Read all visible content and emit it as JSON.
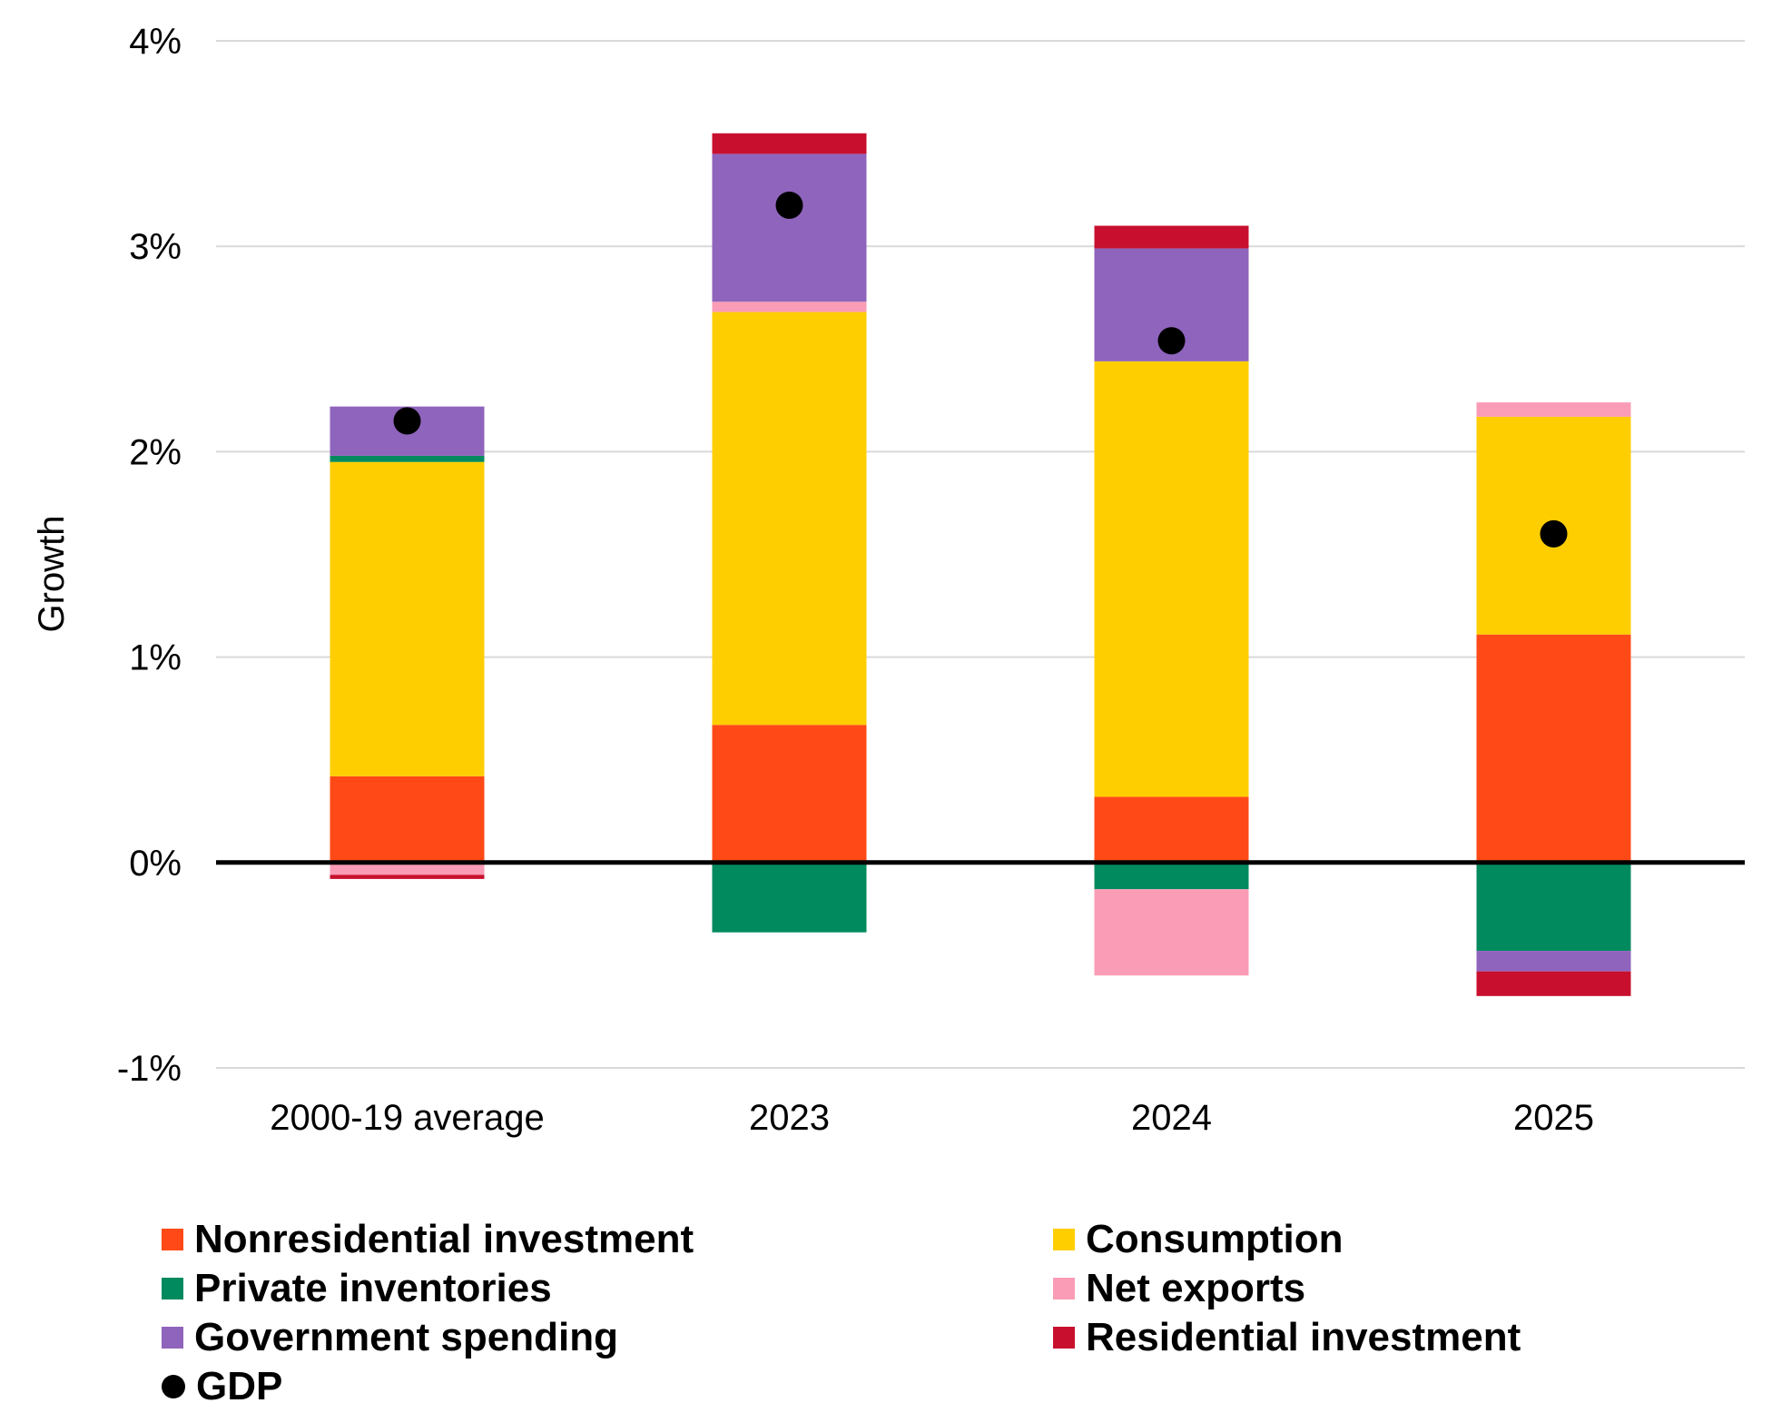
{
  "chart_data": {
    "type": "bar",
    "stacked": true,
    "title": "",
    "xlabel": "",
    "ylabel": "Growth",
    "ylim": [
      -1,
      4
    ],
    "y_ticks": [
      {
        "value": 4,
        "label": "4%"
      },
      {
        "value": 3,
        "label": "3%"
      },
      {
        "value": 2,
        "label": "2%"
      },
      {
        "value": 1,
        "label": "1%"
      },
      {
        "value": 0,
        "label": "0%"
      },
      {
        "value": -1,
        "label": "-1%"
      }
    ],
    "grid": true,
    "categories": [
      "2000-19 average",
      "2023",
      "2024",
      "2025"
    ],
    "series": [
      {
        "name": "Nonresidential investment",
        "color": "#FF4A17",
        "values": [
          0.42,
          0.67,
          0.32,
          1.11
        ]
      },
      {
        "name": "Consumption",
        "color": "#FFCE00",
        "values": [
          1.53,
          2.01,
          2.12,
          1.06
        ]
      },
      {
        "name": "Private inventories",
        "color": "#008A5E",
        "values": [
          0.03,
          -0.34,
          -0.13,
          -0.43
        ]
      },
      {
        "name": "Net exports",
        "color": "#FB9CB6",
        "values": [
          -0.06,
          0.05,
          -0.42,
          0.07
        ]
      },
      {
        "name": "Government spending",
        "color": "#8F64BC",
        "values": [
          0.24,
          0.72,
          0.55,
          -0.1
        ]
      },
      {
        "name": "Residential investment",
        "color": "#C8102E",
        "values": [
          -0.02,
          0.1,
          0.11,
          -0.12
        ]
      }
    ],
    "gdp": {
      "name": "GDP",
      "color": "#000000",
      "values": [
        2.15,
        3.2,
        2.54,
        1.6
      ]
    },
    "legend_position": "bottom"
  },
  "legend": {
    "items": [
      {
        "label": "Nonresidential investment",
        "color": "#FF4A17"
      },
      {
        "label": "Consumption",
        "color": "#FFCE00"
      },
      {
        "label": "Private inventories",
        "color": "#008A5E"
      },
      {
        "label": "Net exports",
        "color": "#FB9CB6"
      },
      {
        "label": "Government spending",
        "color": "#8F64BC"
      },
      {
        "label": "Residential investment",
        "color": "#C8102E"
      }
    ],
    "gdp_label": "GDP"
  }
}
